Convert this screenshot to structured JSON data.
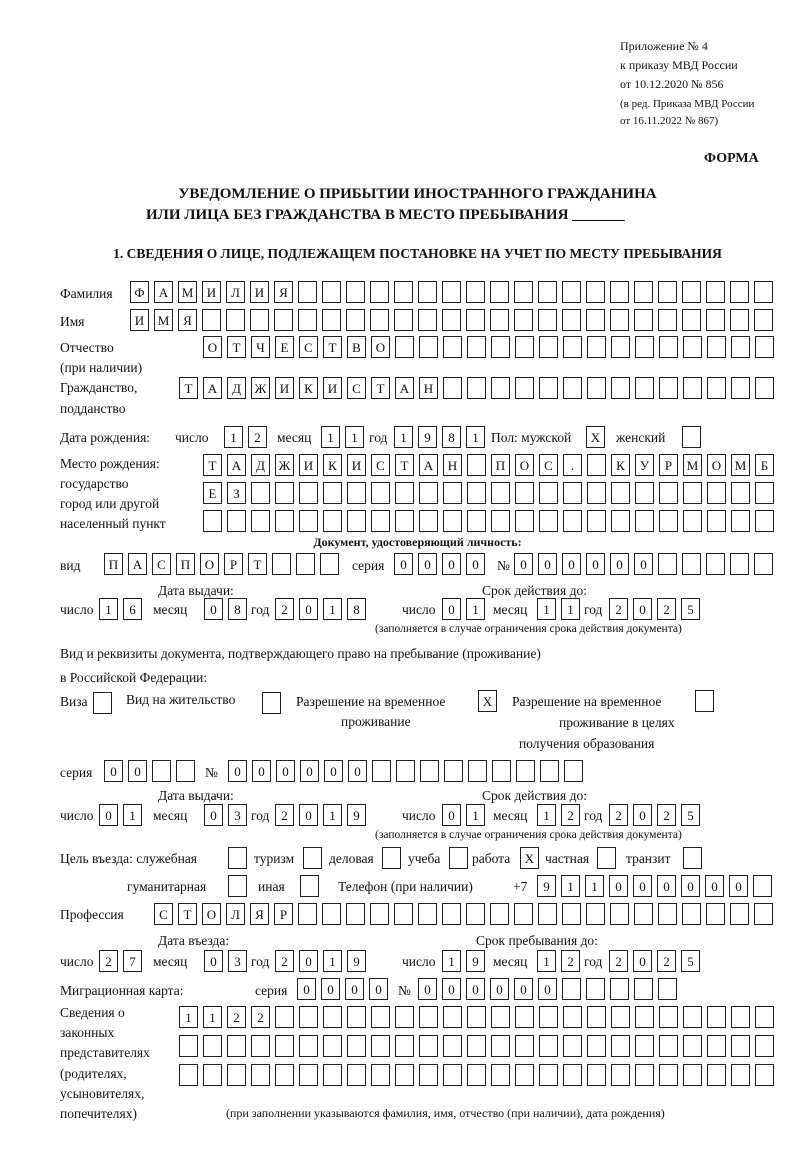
{
  "header": {
    "appendix": "Приложение № 4",
    "order": "к приказу МВД России",
    "order_date": "от 10.12.2020 № 856",
    "revision1": "(в ред. Приказа МВД России",
    "revision2": "от 16.11.2022 № 867)",
    "form_label": "ФОРМА"
  },
  "title": {
    "line1": "УВЕДОМЛЕНИЕ О ПРИБЫТИИ ИНОСТРАННОГО ГРАЖДАНИНА",
    "line2": "ИЛИ ЛИЦА БЕЗ ГРАЖДАНСТВА В МЕСТО ПРЕБЫВАНИЯ",
    "blank": "_______"
  },
  "section1": {
    "heading": "1. СВЕДЕНИЯ О ЛИЦЕ, ПОДЛЕЖАЩЕМ ПОСТАНОВКЕ НА УЧЕТ ПО МЕСТУ ПРЕБЫВАНИЯ",
    "surname": {
      "label": "Фамилия",
      "value": "ФАМИЛИЯ"
    },
    "name": {
      "label": "Имя",
      "value": "ИМЯ"
    },
    "patronymic": {
      "label": "Отчество",
      "label2": "(при наличии)",
      "value": "ОТЧЕСТВО"
    },
    "citizenship": {
      "label": "Гражданство,",
      "label2": "подданство",
      "value": "ТАДЖИКИСТАН"
    },
    "birth_date": {
      "label": "Дата рождения:",
      "day_label": "число",
      "month_label": "месяц",
      "year_label": "год",
      "day": "12",
      "month": "11",
      "year": "1981"
    },
    "sex": {
      "label": "Пол: мужской",
      "female_label": "женский",
      "male": "X",
      "female": ""
    },
    "birth_place": {
      "label1": "Место рождения:",
      "label2": "государство",
      "label3": "город или другой",
      "label4": "населенный пункт",
      "row1": "ТАДЖИКИСТАН ПОС. КУРМОМБ",
      "row2": "ЕЗ",
      "row3": ""
    },
    "id_document": {
      "heading": "Документ, удостоверяющий личность:",
      "type_label": "вид",
      "type": "ПАСПОРТ",
      "series_label": "серия",
      "series": "0000",
      "number_label": "№",
      "number": "000000",
      "issue_label": "Дата выдачи:",
      "valid_label": "Срок действия до:",
      "day_label": "число",
      "month_label": "месяц",
      "year_label": "год",
      "issue_day": "16",
      "issue_month": "08",
      "issue_year": "2018",
      "valid_day": "01",
      "valid_month": "11",
      "valid_year": "2025",
      "note": "(заполняется в случае ограничения срока действия документа)"
    },
    "residence_document": {
      "heading1": "Вид и реквизиты документа, подтверждающего право на пребывание (проживание)",
      "heading2": "в Российской Федерации:",
      "visa_label": "Виза",
      "visa": "",
      "residence_permit_label": "Вид на жительство",
      "residence_permit": "",
      "temp_permit_label1": "Разрешение на временное",
      "temp_permit_label2": "проживание",
      "temp_permit": "X",
      "edu_permit_label1": "Разрешение на временное",
      "edu_permit_label2": "проживание в целях",
      "edu_permit_label3": "получения образования",
      "edu_permit": "",
      "series_label": "серия",
      "series": "00",
      "number_label": "№",
      "number": "000000",
      "issue_label": "Дата выдачи:",
      "valid_label": "Срок действия до:",
      "day_label": "число",
      "month_label": "месяц",
      "year_label": "год",
      "issue_day": "01",
      "issue_month": "03",
      "issue_year": "2019",
      "valid_day": "01",
      "valid_month": "12",
      "valid_year": "2025",
      "note": "(заполняется в случае ограничения срока действия документа)"
    },
    "purpose": {
      "label": "Цель въезда: служебная",
      "official": "",
      "tourism_label": "туризм",
      "tourism": "",
      "business_label": "деловая",
      "business": "",
      "study_label": "учеба",
      "study": "",
      "work_label": "работа",
      "work": "X",
      "private_label": "частная",
      "private": "",
      "transit_label": "транзит",
      "transit": "",
      "humanitarian_label": "гуманитарная",
      "humanitarian": "",
      "other_label": "иная",
      "other": ""
    },
    "phone": {
      "label": "Телефон (при наличии)",
      "prefix": "+7",
      "value": "911000000"
    },
    "profession": {
      "label": "Профессия",
      "value": "СТОЛЯР"
    },
    "entry": {
      "entry_label": "Дата въезда:",
      "stay_label": "Срок пребывания до:",
      "day_label": "число",
      "month_label": "месяц",
      "year_label": "год",
      "entry_day": "27",
      "entry_month": "03",
      "entry_year": "2019",
      "stay_day": "19",
      "stay_month": "12",
      "stay_year": "2025"
    },
    "migration_card": {
      "label": "Миграционная карта:",
      "series_label": "серия",
      "series": "0000",
      "number_label": "№",
      "number": "000000"
    },
    "representatives": {
      "label1": "Сведения о",
      "label2": "законных",
      "label3": "представителях",
      "label4": "(родителях,",
      "label5": "усыновителях,",
      "label6": "попечителях)",
      "row1": "1122",
      "row2": "",
      "row3": "",
      "note": "(при заполнении указываются фамилия, имя, отчество (при наличии), дата рождения)"
    }
  }
}
